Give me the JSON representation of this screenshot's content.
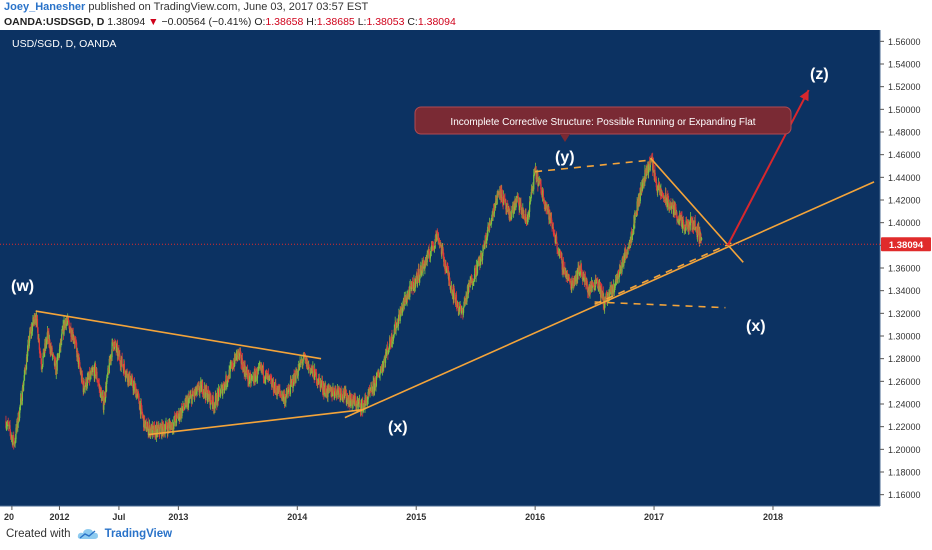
{
  "header": {
    "author": "Joey_Hanesher",
    "published_text": "published on TradingView.com, June 03, 2017 03:57 EST",
    "symbol": "OANDA:USDSGD, D",
    "last": "1.38094",
    "change_arrow": "▼",
    "change": "−0.00564 (−0.41%)",
    "o_label": "O:",
    "o": "1.38658",
    "h_label": "H:",
    "h": "1.38685",
    "l_label": "L:",
    "l": "1.38053",
    "c_label": "C:",
    "c": "1.38094"
  },
  "chart_title": "USD/SGD, D, OANDA",
  "annotation": "Incomplete Corrective Structure: Possible Running or Expanding Flat",
  "wave_labels": [
    "(w)",
    "(x)",
    "(y)",
    "(x)",
    "(z)"
  ],
  "price_badge": "1.38094",
  "footer": {
    "created": "Created with",
    "brand": "TradingView",
    "logo_icon": "tradingview-cloud-icon"
  },
  "colors": {
    "background": "#0c3262",
    "up": "#7bc142",
    "down": "#e03a3a",
    "trend": "#f4a43a",
    "projection": "#d8272d",
    "badge": "#e02b2b"
  },
  "chart_data": {
    "type": "candlestick",
    "symbol": "USD/SGD",
    "timeframe": "D",
    "ylim": [
      1.15,
      1.57
    ],
    "y_ticks": [
      "1.56000",
      "1.54000",
      "1.52000",
      "1.50000",
      "1.48000",
      "1.46000",
      "1.44000",
      "1.42000",
      "1.40000",
      "1.38000",
      "1.36000",
      "1.34000",
      "1.32000",
      "1.30000",
      "1.28000",
      "1.26000",
      "1.24000",
      "1.22000",
      "1.20000",
      "1.18000",
      "1.16000"
    ],
    "x_ticks": [
      {
        "label": "20",
        "t": 2011.6
      },
      {
        "label": "2012",
        "t": 2012.0
      },
      {
        "label": "Jul",
        "t": 2012.5
      },
      {
        "label": "2013",
        "t": 2013.0
      },
      {
        "label": "2014",
        "t": 2014.0
      },
      {
        "label": "2015",
        "t": 2015.0
      },
      {
        "label": "2016",
        "t": 2016.0
      },
      {
        "label": "2017",
        "t": 2017.0
      },
      {
        "label": "2018",
        "t": 2018.0
      }
    ],
    "price_path": [
      [
        2011.55,
        1.225
      ],
      [
        2011.62,
        1.205
      ],
      [
        2011.68,
        1.245
      ],
      [
        2011.75,
        1.3
      ],
      [
        2011.8,
        1.32
      ],
      [
        2011.85,
        1.275
      ],
      [
        2011.9,
        1.3
      ],
      [
        2011.97,
        1.27
      ],
      [
        2012.05,
        1.315
      ],
      [
        2012.12,
        1.3
      ],
      [
        2012.2,
        1.255
      ],
      [
        2012.3,
        1.27
      ],
      [
        2012.37,
        1.24
      ],
      [
        2012.45,
        1.295
      ],
      [
        2012.55,
        1.27
      ],
      [
        2012.65,
        1.25
      ],
      [
        2012.72,
        1.22
      ],
      [
        2012.8,
        1.215
      ],
      [
        2012.95,
        1.222
      ],
      [
        2013.1,
        1.245
      ],
      [
        2013.2,
        1.255
      ],
      [
        2013.3,
        1.24
      ],
      [
        2013.4,
        1.26
      ],
      [
        2013.5,
        1.285
      ],
      [
        2013.6,
        1.26
      ],
      [
        2013.7,
        1.27
      ],
      [
        2013.8,
        1.255
      ],
      [
        2013.9,
        1.245
      ],
      [
        2014.05,
        1.28
      ],
      [
        2014.15,
        1.265
      ],
      [
        2014.25,
        1.25
      ],
      [
        2014.35,
        1.252
      ],
      [
        2014.45,
        1.243
      ],
      [
        2014.55,
        1.238
      ],
      [
        2014.62,
        1.25
      ],
      [
        2014.7,
        1.27
      ],
      [
        2014.8,
        1.3
      ],
      [
        2014.9,
        1.33
      ],
      [
        2015.0,
        1.35
      ],
      [
        2015.1,
        1.37
      ],
      [
        2015.18,
        1.39
      ],
      [
        2015.25,
        1.36
      ],
      [
        2015.32,
        1.335
      ],
      [
        2015.38,
        1.32
      ],
      [
        2015.45,
        1.345
      ],
      [
        2015.55,
        1.37
      ],
      [
        2015.62,
        1.4
      ],
      [
        2015.7,
        1.43
      ],
      [
        2015.78,
        1.405
      ],
      [
        2015.85,
        1.42
      ],
      [
        2015.93,
        1.4
      ],
      [
        2016.0,
        1.445
      ],
      [
        2016.08,
        1.42
      ],
      [
        2016.15,
        1.395
      ],
      [
        2016.22,
        1.365
      ],
      [
        2016.3,
        1.345
      ],
      [
        2016.38,
        1.36
      ],
      [
        2016.45,
        1.34
      ],
      [
        2016.52,
        1.35
      ],
      [
        2016.58,
        1.33
      ],
      [
        2016.65,
        1.34
      ],
      [
        2016.72,
        1.36
      ],
      [
        2016.8,
        1.385
      ],
      [
        2016.87,
        1.42
      ],
      [
        2016.93,
        1.445
      ],
      [
        2016.98,
        1.455
      ],
      [
        2017.03,
        1.43
      ],
      [
        2017.1,
        1.42
      ],
      [
        2017.18,
        1.41
      ],
      [
        2017.25,
        1.395
      ],
      [
        2017.33,
        1.4
      ],
      [
        2017.4,
        1.385
      ]
    ],
    "trendlines": [
      {
        "name": "triangle-upper",
        "from": [
          2011.8,
          1.322
        ],
        "to": [
          2014.2,
          1.28
        ],
        "dash": false
      },
      {
        "name": "triangle-lower",
        "from": [
          2012.75,
          1.213
        ],
        "to": [
          2014.55,
          1.235
        ],
        "dash": false
      },
      {
        "name": "main-support",
        "from": [
          2014.4,
          1.228
        ],
        "to": [
          2018.85,
          1.436
        ],
        "dash": false
      },
      {
        "name": "upper-resistance",
        "from": [
          2016.97,
          1.457
        ],
        "to": [
          2017.75,
          1.365
        ],
        "dash": false
      },
      {
        "name": "top-dashed",
        "from": [
          2016.0,
          1.445
        ],
        "to": [
          2016.95,
          1.455
        ],
        "dash": true
      },
      {
        "name": "inner-support-dashed",
        "from": [
          2016.5,
          1.328
        ],
        "to": [
          2017.65,
          1.382
        ],
        "dash": true
      },
      {
        "name": "bottom-dashed",
        "from": [
          2016.5,
          1.33
        ],
        "to": [
          2017.6,
          1.325
        ],
        "dash": true
      }
    ],
    "projection": {
      "from": [
        2017.62,
        1.38
      ],
      "to": [
        2018.3,
        1.517
      ]
    },
    "last_price": 1.38094,
    "grid": false
  }
}
